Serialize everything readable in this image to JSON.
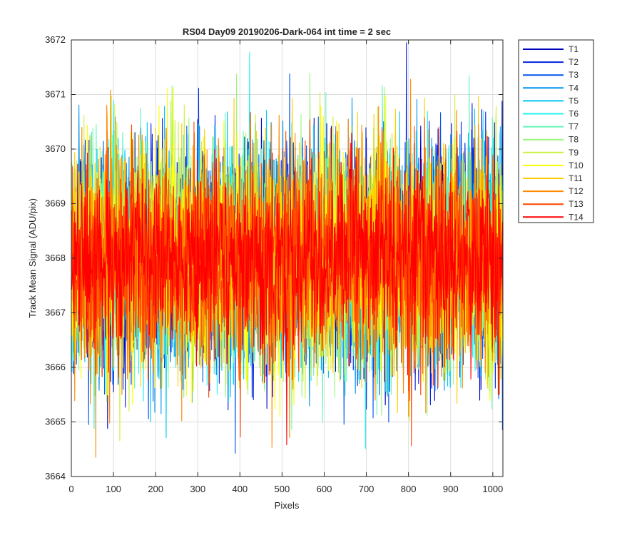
{
  "chart_data": {
    "type": "line",
    "title": "RS04 Day09 20190206-Dark-064 int time = 2 sec",
    "xlabel": "Pixels",
    "ylabel": "Track Mean Signal (ADU/pix)",
    "xlim": [
      0,
      1024
    ],
    "ylim": [
      3664,
      3672
    ],
    "x_ticks": [
      0,
      100,
      200,
      300,
      400,
      500,
      600,
      700,
      800,
      900,
      1000
    ],
    "y_ticks": [
      3664,
      3665,
      3666,
      3667,
      3668,
      3669,
      3670,
      3671,
      3672
    ],
    "grid": true,
    "legend_position": "outside-top-right",
    "x_range_points": [
      1,
      1024
    ],
    "series": [
      {
        "name": "T1",
        "color": "#0000bf",
        "mean": 3668.0,
        "std": 1.0
      },
      {
        "name": "T2",
        "color": "#0022dd",
        "mean": 3668.0,
        "std": 1.0
      },
      {
        "name": "T3",
        "color": "#0055ee",
        "mean": 3668.0,
        "std": 1.0
      },
      {
        "name": "T4",
        "color": "#0095f0",
        "mean": 3668.0,
        "std": 1.0
      },
      {
        "name": "T5",
        "color": "#00c8f5",
        "mean": 3668.0,
        "std": 1.0
      },
      {
        "name": "T6",
        "color": "#20f0f0",
        "mean": 3668.0,
        "std": 1.0
      },
      {
        "name": "T7",
        "color": "#66f5b8",
        "mean": 3668.0,
        "std": 1.0
      },
      {
        "name": "T8",
        "color": "#99f57f",
        "mean": 3668.0,
        "std": 1.0
      },
      {
        "name": "T9",
        "color": "#ccf040",
        "mean": 3668.0,
        "std": 1.0
      },
      {
        "name": "T10",
        "color": "#ffff00",
        "mean": 3668.0,
        "std": 1.0
      },
      {
        "name": "T11",
        "color": "#ffcc00",
        "mean": 3668.0,
        "std": 1.0
      },
      {
        "name": "T12",
        "color": "#ff8800",
        "mean": 3668.0,
        "std": 1.0
      },
      {
        "name": "T13",
        "color": "#ff4400",
        "mean": 3668.0,
        "std": 1.0
      },
      {
        "name": "T14",
        "color": "#ff0000",
        "mean": 3668.0,
        "std": 0.85
      }
    ]
  }
}
